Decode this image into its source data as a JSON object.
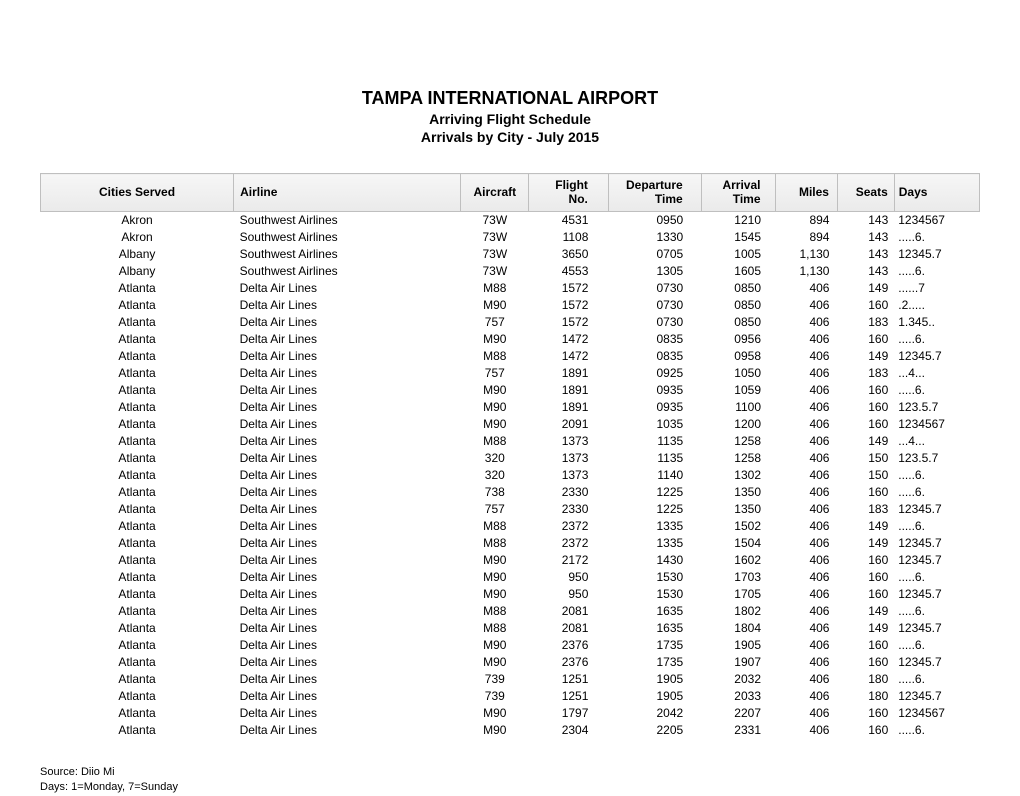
{
  "header": {
    "title": "TAMPA INTERNATIONAL AIRPORT",
    "subtitle": "Arriving Flight Schedule",
    "date_range": "Arrivals by City - July 2015"
  },
  "table": {
    "columns": [
      "Cities Served",
      "Airline",
      "Aircraft",
      "Flight No.",
      "Departure Time",
      "Arrival Time",
      "Miles",
      "Seats",
      "Days"
    ],
    "rows": [
      [
        "Akron",
        "Southwest Airlines",
        "73W",
        "4531",
        "0950",
        "1210",
        "894",
        "143",
        "1234567"
      ],
      [
        "Akron",
        "Southwest Airlines",
        "73W",
        "1108",
        "1330",
        "1545",
        "894",
        "143",
        ".....6."
      ],
      [
        "Albany",
        "Southwest Airlines",
        "73W",
        "3650",
        "0705",
        "1005",
        "1,130",
        "143",
        "12345.7"
      ],
      [
        "Albany",
        "Southwest Airlines",
        "73W",
        "4553",
        "1305",
        "1605",
        "1,130",
        "143",
        ".....6."
      ],
      [
        "Atlanta",
        "Delta Air Lines",
        "M88",
        "1572",
        "0730",
        "0850",
        "406",
        "149",
        "......7"
      ],
      [
        "Atlanta",
        "Delta Air Lines",
        "M90",
        "1572",
        "0730",
        "0850",
        "406",
        "160",
        ".2....."
      ],
      [
        "Atlanta",
        "Delta Air Lines",
        "757",
        "1572",
        "0730",
        "0850",
        "406",
        "183",
        "1.345.."
      ],
      [
        "Atlanta",
        "Delta Air Lines",
        "M90",
        "1472",
        "0835",
        "0956",
        "406",
        "160",
        ".....6."
      ],
      [
        "Atlanta",
        "Delta Air Lines",
        "M88",
        "1472",
        "0835",
        "0958",
        "406",
        "149",
        "12345.7"
      ],
      [
        "Atlanta",
        "Delta Air Lines",
        "757",
        "1891",
        "0925",
        "1050",
        "406",
        "183",
        "...4..."
      ],
      [
        "Atlanta",
        "Delta Air Lines",
        "M90",
        "1891",
        "0935",
        "1059",
        "406",
        "160",
        ".....6."
      ],
      [
        "Atlanta",
        "Delta Air Lines",
        "M90",
        "1891",
        "0935",
        "1100",
        "406",
        "160",
        "123.5.7"
      ],
      [
        "Atlanta",
        "Delta Air Lines",
        "M90",
        "2091",
        "1035",
        "1200",
        "406",
        "160",
        "1234567"
      ],
      [
        "Atlanta",
        "Delta Air Lines",
        "M88",
        "1373",
        "1135",
        "1258",
        "406",
        "149",
        "...4..."
      ],
      [
        "Atlanta",
        "Delta Air Lines",
        "320",
        "1373",
        "1135",
        "1258",
        "406",
        "150",
        "123.5.7"
      ],
      [
        "Atlanta",
        "Delta Air Lines",
        "320",
        "1373",
        "1140",
        "1302",
        "406",
        "150",
        ".....6."
      ],
      [
        "Atlanta",
        "Delta Air Lines",
        "738",
        "2330",
        "1225",
        "1350",
        "406",
        "160",
        ".....6."
      ],
      [
        "Atlanta",
        "Delta Air Lines",
        "757",
        "2330",
        "1225",
        "1350",
        "406",
        "183",
        "12345.7"
      ],
      [
        "Atlanta",
        "Delta Air Lines",
        "M88",
        "2372",
        "1335",
        "1502",
        "406",
        "149",
        ".....6."
      ],
      [
        "Atlanta",
        "Delta Air Lines",
        "M88",
        "2372",
        "1335",
        "1504",
        "406",
        "149",
        "12345.7"
      ],
      [
        "Atlanta",
        "Delta Air Lines",
        "M90",
        "2172",
        "1430",
        "1602",
        "406",
        "160",
        "12345.7"
      ],
      [
        "Atlanta",
        "Delta Air Lines",
        "M90",
        "950",
        "1530",
        "1703",
        "406",
        "160",
        ".....6."
      ],
      [
        "Atlanta",
        "Delta Air Lines",
        "M90",
        "950",
        "1530",
        "1705",
        "406",
        "160",
        "12345.7"
      ],
      [
        "Atlanta",
        "Delta Air Lines",
        "M88",
        "2081",
        "1635",
        "1802",
        "406",
        "149",
        ".....6."
      ],
      [
        "Atlanta",
        "Delta Air Lines",
        "M88",
        "2081",
        "1635",
        "1804",
        "406",
        "149",
        "12345.7"
      ],
      [
        "Atlanta",
        "Delta Air Lines",
        "M90",
        "2376",
        "1735",
        "1905",
        "406",
        "160",
        ".....6."
      ],
      [
        "Atlanta",
        "Delta Air Lines",
        "M90",
        "2376",
        "1735",
        "1907",
        "406",
        "160",
        "12345.7"
      ],
      [
        "Atlanta",
        "Delta Air Lines",
        "739",
        "1251",
        "1905",
        "2032",
        "406",
        "180",
        ".....6."
      ],
      [
        "Atlanta",
        "Delta Air Lines",
        "739",
        "1251",
        "1905",
        "2033",
        "406",
        "180",
        "12345.7"
      ],
      [
        "Atlanta",
        "Delta Air Lines",
        "M90",
        "1797",
        "2042",
        "2207",
        "406",
        "160",
        "1234567"
      ],
      [
        "Atlanta",
        "Delta Air Lines",
        "M90",
        "2304",
        "2205",
        "2331",
        "406",
        "160",
        ".....6."
      ]
    ]
  },
  "footer": {
    "source": "Source: Diio Mi",
    "days_legend": "Days: 1=Monday, 7=Sunday"
  },
  "styling": {
    "background_color": "#ffffff",
    "text_color": "#000000",
    "header_bg": "#f0f0f0",
    "border_color": "#bfbfbf",
    "title_fontsize": 18,
    "subtitle_fontsize": 14,
    "body_fontsize": 12,
    "footer_fontsize": 11,
    "font_family": "Arial, Helvetica, sans-serif"
  }
}
